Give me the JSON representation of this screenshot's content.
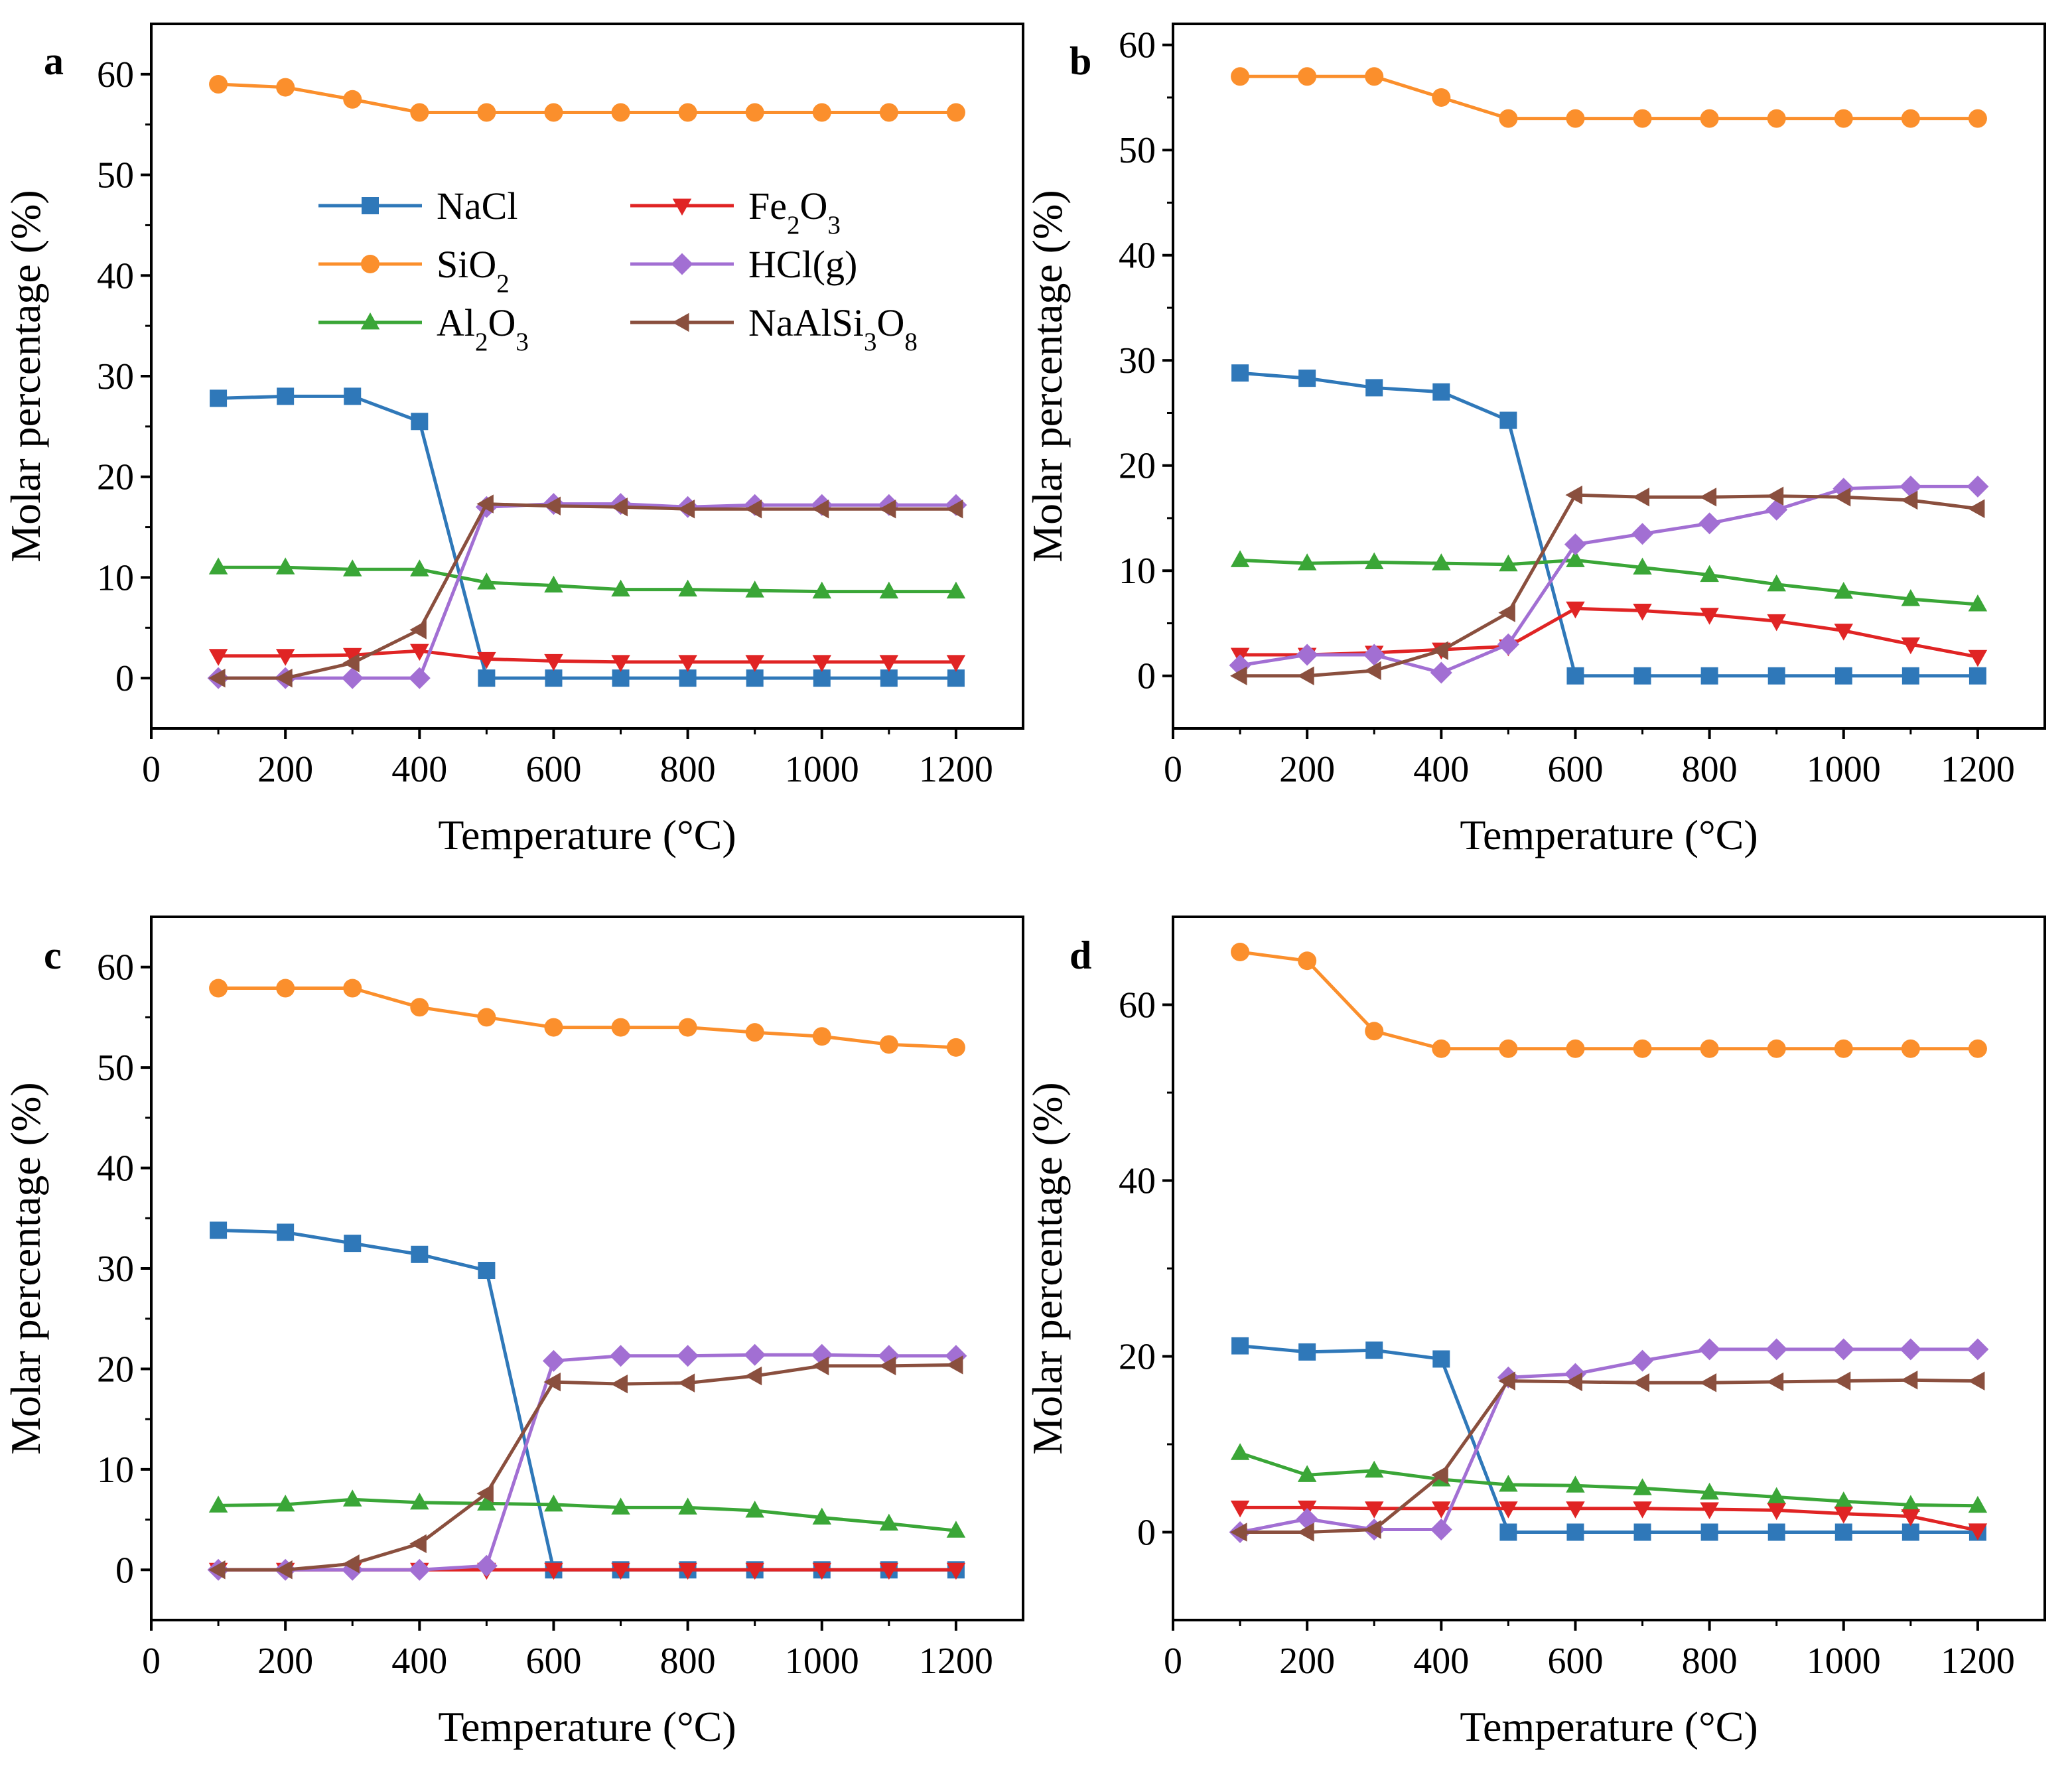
{
  "figure": {
    "legend": [
      {
        "id": "NaCl",
        "base": "NaCl",
        "subs": []
      },
      {
        "id": "SiO2",
        "base": "SiO",
        "subs": [
          "2"
        ]
      },
      {
        "id": "Al2O3",
        "base": "Al",
        "subs": [
          "2",
          "O",
          "3"
        ]
      },
      {
        "id": "Fe2O3",
        "base": "Fe",
        "subs": [
          "2",
          "O",
          "3"
        ]
      },
      {
        "id": "HCl",
        "base": "HCl(g)",
        "subs": []
      },
      {
        "id": "NaAlSi3O8",
        "base": "NaAlSi",
        "subs": [
          "3",
          "O",
          "8"
        ]
      }
    ],
    "colors": {
      "NaCl": "#2f78b9",
      "SiO2": "#fb8f2c",
      "Al2O3": "#3aa637",
      "Fe2O3": "#e02424",
      "HCl": "#a26fd3",
      "NaAlSi3O8": "#8a4f3e"
    },
    "markers": {
      "NaCl": "square",
      "SiO2": "circle",
      "Al2O3": "triangle-up",
      "Fe2O3": "triangle-down",
      "HCl": "diamond",
      "NaAlSi3O8": "triangle-left"
    }
  },
  "chart_data": [
    {
      "panel": "a",
      "type": "line",
      "xlabel": "Temperature (°C)",
      "ylabel": "Molar percentage (%)",
      "xlim": [
        0,
        1300
      ],
      "ylim": [
        -5,
        65
      ],
      "xticks": [
        0,
        200,
        400,
        600,
        800,
        1000,
        1200
      ],
      "yticks": [
        0,
        10,
        20,
        30,
        40,
        50,
        60
      ],
      "legend_position": "upper-middle",
      "x": [
        100,
        200,
        300,
        400,
        500,
        600,
        700,
        800,
        900,
        1000,
        1100,
        1200
      ],
      "series": [
        {
          "name": "SiO2",
          "values": [
            59.0,
            58.7,
            57.5,
            56.2,
            56.2,
            56.2,
            56.2,
            56.2,
            56.2,
            56.2,
            56.2,
            56.2
          ]
        },
        {
          "name": "NaCl",
          "values": [
            27.8,
            28.0,
            28.0,
            25.5,
            0,
            0,
            0,
            0,
            0,
            0,
            0,
            0
          ]
        },
        {
          "name": "Al2O3",
          "values": [
            11.0,
            11.0,
            10.8,
            10.8,
            9.5,
            9.2,
            8.8,
            8.8,
            8.7,
            8.6,
            8.6,
            8.6
          ]
        },
        {
          "name": "Fe2O3",
          "values": [
            2.2,
            2.2,
            2.3,
            2.7,
            1.9,
            1.7,
            1.6,
            1.6,
            1.6,
            1.6,
            1.6,
            1.6
          ]
        },
        {
          "name": "HCl",
          "values": [
            0,
            0,
            0,
            0,
            17.0,
            17.3,
            17.3,
            17.0,
            17.2,
            17.2,
            17.2,
            17.2
          ]
        },
        {
          "name": "NaAlSi3O8",
          "values": [
            0,
            0,
            1.5,
            4.8,
            17.3,
            17.1,
            17.0,
            16.8,
            16.8,
            16.8,
            16.8,
            16.8
          ]
        }
      ]
    },
    {
      "panel": "b",
      "type": "line",
      "xlabel": "Temperature (°C)",
      "ylabel": "Molar percentage (%)",
      "xlim": [
        0,
        1300
      ],
      "ylim": [
        -5,
        62
      ],
      "xticks": [
        0,
        200,
        400,
        600,
        800,
        1000,
        1200
      ],
      "yticks": [
        0,
        10,
        20,
        30,
        40,
        50,
        60
      ],
      "x": [
        100,
        200,
        300,
        400,
        500,
        600,
        700,
        800,
        900,
        1000,
        1100,
        1200
      ],
      "series": [
        {
          "name": "SiO2",
          "values": [
            57.0,
            57.0,
            57.0,
            55.0,
            53.0,
            53.0,
            53.0,
            53.0,
            53.0,
            53.0,
            53.0,
            53.0
          ]
        },
        {
          "name": "NaCl",
          "values": [
            28.8,
            28.3,
            27.4,
            27.0,
            24.3,
            0,
            0,
            0,
            0,
            0,
            0,
            0
          ]
        },
        {
          "name": "Al2O3",
          "values": [
            11.0,
            10.7,
            10.8,
            10.7,
            10.6,
            11.0,
            10.3,
            9.6,
            8.7,
            8.0,
            7.3,
            6.8
          ]
        },
        {
          "name": "Fe2O3",
          "values": [
            2.0,
            2.0,
            2.2,
            2.5,
            2.8,
            6.4,
            6.2,
            5.8,
            5.2,
            4.3,
            3.0,
            1.8
          ]
        },
        {
          "name": "HCl",
          "values": [
            1.0,
            2.0,
            2.0,
            0.3,
            3.0,
            12.5,
            13.5,
            14.5,
            15.8,
            17.8,
            18.0,
            18.0
          ]
        },
        {
          "name": "NaAlSi3O8",
          "values": [
            0,
            0,
            0.5,
            2.4,
            6.0,
            17.2,
            17.0,
            17.0,
            17.1,
            17.0,
            16.7,
            15.9
          ]
        }
      ]
    },
    {
      "panel": "c",
      "type": "line",
      "xlabel": "Temperature (°C)",
      "ylabel": "Molar percentage (%)",
      "xlim": [
        0,
        1300
      ],
      "ylim": [
        -5,
        65
      ],
      "xticks": [
        0,
        200,
        400,
        600,
        800,
        1000,
        1200
      ],
      "yticks": [
        0,
        10,
        20,
        30,
        40,
        50,
        60
      ],
      "x": [
        100,
        200,
        300,
        400,
        500,
        600,
        700,
        800,
        900,
        1000,
        1100,
        1200
      ],
      "series": [
        {
          "name": "SiO2",
          "values": [
            57.9,
            57.9,
            57.9,
            56.0,
            55.0,
            54.0,
            54.0,
            54.0,
            53.5,
            53.1,
            52.3,
            52.0
          ]
        },
        {
          "name": "NaCl",
          "values": [
            33.8,
            33.6,
            32.5,
            31.4,
            29.8,
            0,
            0,
            0,
            0,
            0,
            0,
            0
          ]
        },
        {
          "name": "Al2O3",
          "values": [
            6.4,
            6.5,
            7.0,
            6.7,
            6.6,
            6.5,
            6.2,
            6.2,
            5.9,
            5.2,
            4.6,
            3.9
          ]
        },
        {
          "name": "Fe2O3",
          "values": [
            0,
            0,
            0,
            0,
            0,
            0,
            0,
            0,
            0,
            0,
            0,
            0
          ]
        },
        {
          "name": "HCl",
          "values": [
            0,
            0,
            0,
            0,
            0.4,
            20.8,
            21.3,
            21.3,
            21.4,
            21.4,
            21.3,
            21.3
          ]
        },
        {
          "name": "NaAlSi3O8",
          "values": [
            0,
            0,
            0.6,
            2.6,
            7.6,
            18.7,
            18.5,
            18.6,
            19.3,
            20.3,
            20.3,
            20.4
          ]
        }
      ]
    },
    {
      "panel": "d",
      "type": "line",
      "xlabel": "Temperature (°C)",
      "ylabel": "Molar percentage (%)",
      "xlim": [
        0,
        1300
      ],
      "ylim": [
        -10,
        70
      ],
      "xticks": [
        0,
        200,
        400,
        600,
        800,
        1000,
        1200
      ],
      "yticks": [
        0,
        20,
        40,
        60
      ],
      "x": [
        100,
        200,
        300,
        400,
        500,
        600,
        700,
        800,
        900,
        1000,
        1100,
        1200
      ],
      "series": [
        {
          "name": "SiO2",
          "values": [
            66.0,
            65.0,
            57.0,
            55.0,
            55.0,
            55.0,
            55.0,
            55.0,
            55.0,
            55.0,
            55.0,
            55.0
          ]
        },
        {
          "name": "NaCl",
          "values": [
            21.2,
            20.5,
            20.7,
            19.7,
            0,
            0,
            0,
            0,
            0,
            0,
            0,
            0
          ]
        },
        {
          "name": "Al2O3",
          "values": [
            9.0,
            6.5,
            7.0,
            6.0,
            5.4,
            5.3,
            5.0,
            4.5,
            4.0,
            3.5,
            3.1,
            3.0
          ]
        },
        {
          "name": "Fe2O3",
          "values": [
            2.8,
            2.8,
            2.7,
            2.7,
            2.7,
            2.7,
            2.7,
            2.6,
            2.5,
            2.1,
            1.8,
            0.2
          ]
        },
        {
          "name": "HCl",
          "values": [
            0,
            1.5,
            0.3,
            0.3,
            17.6,
            18.0,
            19.5,
            20.8,
            20.8,
            20.8,
            20.8,
            20.8
          ]
        },
        {
          "name": "NaAlSi3O8",
          "values": [
            0,
            0,
            0.3,
            6.5,
            17.2,
            17.1,
            17.0,
            17.0,
            17.1,
            17.2,
            17.3,
            17.2
          ]
        }
      ]
    }
  ]
}
